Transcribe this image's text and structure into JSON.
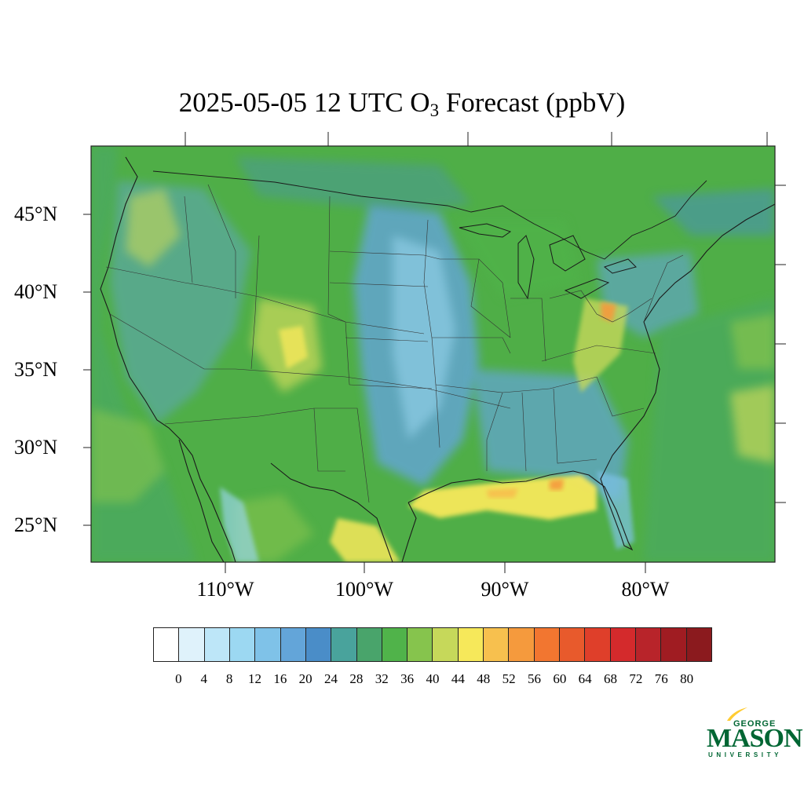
{
  "title": {
    "prefix": "2025-05-05 12 UTC O",
    "subscript": "3",
    "suffix": " Forecast (ppbV)"
  },
  "map": {
    "lat_labels": [
      "45°N",
      "40°N",
      "35°N",
      "30°N",
      "25°N"
    ],
    "lon_labels": [
      "110°W",
      "100°W",
      "90°W",
      "80°W"
    ],
    "lat_range": [
      22.5,
      49.3
    ],
    "lon_range": [
      -119.6,
      -70.2
    ],
    "background_color": "#4fae47",
    "border_color": "#222222"
  },
  "colorbar": {
    "ticks": [
      "0",
      "4",
      "8",
      "12",
      "16",
      "20",
      "24",
      "28",
      "32",
      "36",
      "40",
      "44",
      "48",
      "52",
      "56",
      "60",
      "64",
      "68",
      "72",
      "76",
      "80"
    ],
    "colors": [
      "#ffffff",
      "#dff2fb",
      "#bde6f8",
      "#9cd8f2",
      "#7fc2e8",
      "#63a5d9",
      "#4a8dc8",
      "#49a39c",
      "#49a46b",
      "#50b34a",
      "#86c44d",
      "#c6d85a",
      "#f6e85a",
      "#f7c04e",
      "#f59a3d",
      "#f27630",
      "#e85a2c",
      "#df3f2a",
      "#d42a2c",
      "#b8242a",
      "#a01c22",
      "#8b1a1e"
    ]
  },
  "logo": {
    "line1": "GEORGE",
    "line2": "MASON",
    "line3": "UNIVERSITY",
    "brand_color": "#006633",
    "accent_color": "#ffcc33"
  }
}
